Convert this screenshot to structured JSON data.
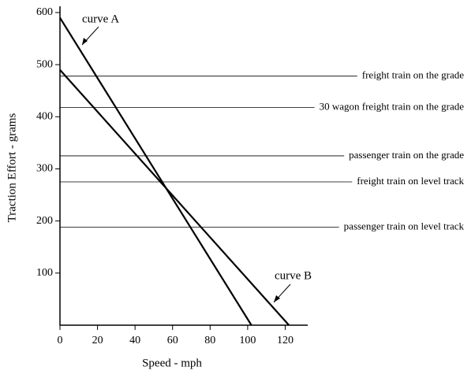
{
  "chart_data": {
    "type": "line",
    "x_label": "Speed - mph",
    "y_label": "Traction Effort - grams",
    "xlim": [
      0,
      132
    ],
    "xticks": [
      0,
      20,
      40,
      60,
      80,
      100,
      120
    ],
    "ylim": [
      0,
      612
    ],
    "yticks": [
      100,
      200,
      300,
      400,
      500,
      600
    ],
    "series": [
      {
        "name": "curve A",
        "color": "#000000",
        "x": [
          0,
          102
        ],
        "values": [
          590,
          0
        ]
      },
      {
        "name": "curve B",
        "color": "#000000",
        "x": [
          0,
          122
        ],
        "values": [
          490,
          0
        ]
      }
    ],
    "reference_lines": [
      {
        "label": "freight train on the grade",
        "value": 478
      },
      {
        "label": "30 wagon freight train on the grade",
        "value": 418
      },
      {
        "label": "passenger train on the grade",
        "value": 325
      },
      {
        "label": "freight train on level track",
        "value": 275
      },
      {
        "label": "passenger train on level track",
        "value": 188
      }
    ]
  }
}
